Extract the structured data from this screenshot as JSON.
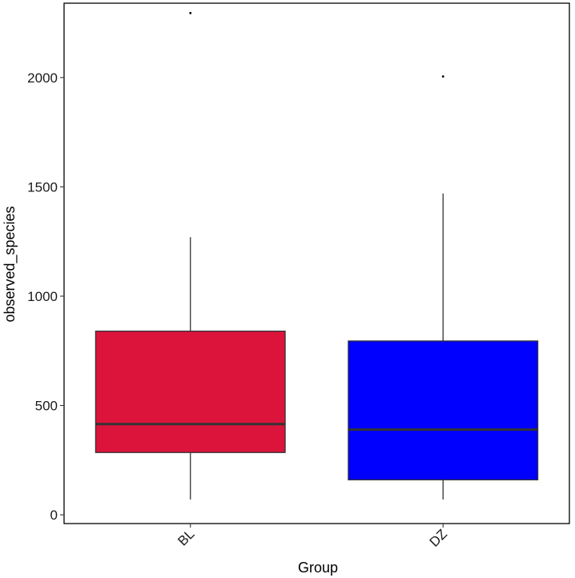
{
  "chart_data": {
    "type": "boxplot",
    "title": "",
    "xlabel": "Group",
    "ylabel": "observed_species",
    "ylim": [
      -40,
      2340
    ],
    "yticks": [
      0,
      500,
      1000,
      1500,
      2000
    ],
    "grid": false,
    "categories": [
      "BL",
      "DZ"
    ],
    "boxes": [
      {
        "category": "BL",
        "whisker_low": 70,
        "q1": 285,
        "median": 415,
        "q3": 840,
        "whisker_high": 1270,
        "outliers": [
          2295
        ],
        "color": "#DC143C"
      },
      {
        "category": "DZ",
        "whisker_low": 70,
        "q1": 160,
        "median": 390,
        "q3": 795,
        "whisker_high": 1470,
        "outliers": [
          2005
        ],
        "color": "#0000FF"
      }
    ]
  }
}
